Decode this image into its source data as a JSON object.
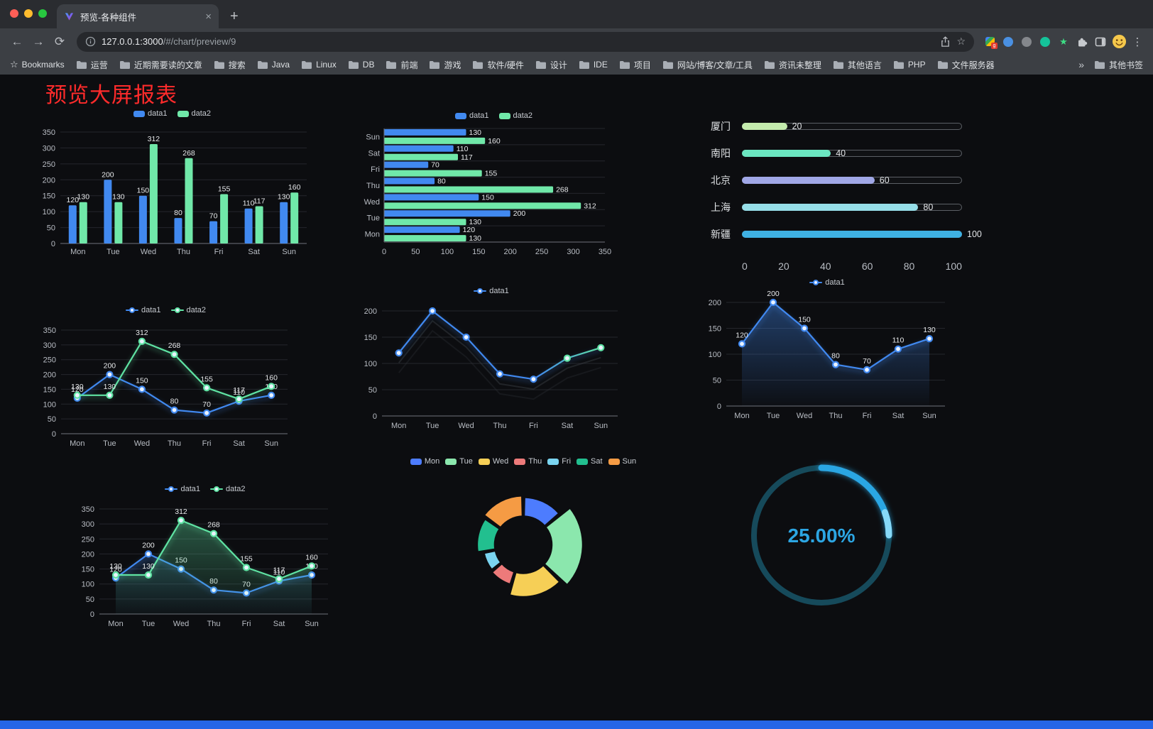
{
  "browser": {
    "tab": {
      "title": "预览-各种组件",
      "close_glyph": "×"
    },
    "new_tab_glyph": "+",
    "url_host": "127.0.0.1:3000",
    "url_path": "/#/chart/preview/9",
    "bookmarks_bar": {
      "first_item": "Bookmarks",
      "folders": [
        "运营",
        "近期需要读的文章",
        "搜索",
        "Java",
        "Linux",
        "DB",
        "前端",
        "游戏",
        "软件/硬件",
        "设计",
        "IDE",
        "项目",
        "网站/博客/文章/工具",
        "资讯未整理",
        "其他语言",
        "PHP",
        "文件服务器"
      ],
      "overflow_glyph": "»",
      "other_bookmarks": "其他书签"
    }
  },
  "page": {
    "title": "预览大屏报表",
    "accent_red": "#ff2b2b",
    "background": "#0c0d10",
    "footer_color": "#2565e6"
  },
  "chart_data": [
    {
      "type": "bar",
      "categories": [
        "Mon",
        "Tue",
        "Wed",
        "Thu",
        "Fri",
        "Sat",
        "Sun"
      ],
      "series": [
        {
          "name": "data1",
          "color": "#4189f0",
          "values": [
            120,
            200,
            150,
            80,
            70,
            110,
            130
          ]
        },
        {
          "name": "data2",
          "color": "#70e8a9",
          "values": [
            130,
            130,
            312,
            268,
            155,
            117,
            160
          ]
        }
      ],
      "ylim": [
        0,
        350
      ],
      "yticks": [
        0,
        50,
        100,
        150,
        200,
        250,
        300,
        350
      ]
    },
    {
      "type": "hbar",
      "categories": [
        "Mon",
        "Tue",
        "Wed",
        "Thu",
        "Fri",
        "Sat",
        "Sun"
      ],
      "series": [
        {
          "name": "data1",
          "color": "#4189f0",
          "values": [
            120,
            200,
            150,
            80,
            70,
            110,
            130
          ]
        },
        {
          "name": "data2",
          "color": "#70e8a9",
          "values": [
            130,
            130,
            312,
            268,
            155,
            117,
            160
          ]
        }
      ],
      "xlim": [
        0,
        350
      ],
      "xticks": [
        0,
        50,
        100,
        150,
        200,
        250,
        300,
        350
      ]
    },
    {
      "type": "progress",
      "max": 100,
      "items": [
        {
          "label": "厦门",
          "value": 20,
          "color": "#c4ebad"
        },
        {
          "label": "南阳",
          "value": 40,
          "color": "#6be6c1"
        },
        {
          "label": "北京",
          "value": 60,
          "color": "#a0a7e6"
        },
        {
          "label": "上海",
          "value": 80,
          "color": "#96dee8"
        },
        {
          "label": "新疆",
          "value": 100,
          "color": "#3fb1e3"
        }
      ],
      "xticks": [
        0,
        20,
        40,
        60,
        80,
        100
      ]
    },
    {
      "type": "line",
      "categories": [
        "Mon",
        "Tue",
        "Wed",
        "Thu",
        "Fri",
        "Sat",
        "Sun"
      ],
      "series": [
        {
          "name": "data1",
          "color": "#4189f0",
          "values": [
            120,
            200,
            150,
            80,
            70,
            110,
            130
          ],
          "labels": true
        },
        {
          "name": "data2",
          "color": "#5fe3a3",
          "values": [
            130,
            130,
            312,
            268,
            155,
            117,
            160
          ],
          "labels": true
        }
      ],
      "ylim": [
        0,
        350
      ],
      "yticks": [
        0,
        50,
        100,
        150,
        200,
        250,
        300,
        350
      ]
    },
    {
      "type": "line",
      "categories": [
        "Mon",
        "Tue",
        "Wed",
        "Thu",
        "Fri",
        "Sat",
        "Sun"
      ],
      "series": [
        {
          "name": "data1",
          "color": "#4189f0",
          "gradient": [
            "#4189f0",
            "#5fe3a3"
          ],
          "values": [
            120,
            200,
            150,
            80,
            70,
            110,
            130
          ],
          "labels": false,
          "shadow": true
        }
      ],
      "ylim": [
        0,
        200
      ],
      "yticks": [
        0,
        50,
        100,
        150,
        200
      ]
    },
    {
      "type": "line",
      "categories": [
        "Mon",
        "Tue",
        "Wed",
        "Thu",
        "Fri",
        "Sat",
        "Sun"
      ],
      "series": [
        {
          "name": "data1",
          "color": "#4189f0",
          "area": true,
          "area_opacity": 0.4,
          "values": [
            120,
            200,
            150,
            80,
            70,
            110,
            130
          ],
          "labels": true
        }
      ],
      "ylim": [
        0,
        200
      ],
      "yticks": [
        0,
        50,
        100,
        150,
        200
      ]
    },
    {
      "type": "line",
      "categories": [
        "Mon",
        "Tue",
        "Wed",
        "Thu",
        "Fri",
        "Sat",
        "Sun"
      ],
      "series": [
        {
          "name": "data1",
          "color": "#4189f0",
          "area": true,
          "area_opacity": 0.15,
          "values": [
            120,
            200,
            150,
            80,
            70,
            110,
            130
          ],
          "labels": true
        },
        {
          "name": "data2",
          "color": "#5fe3a3",
          "area": true,
          "area_opacity": 0.35,
          "values": [
            130,
            130,
            312,
            268,
            155,
            117,
            160
          ],
          "labels": true
        }
      ],
      "ylim": [
        0,
        350
      ],
      "yticks": [
        0,
        50,
        100,
        150,
        200,
        250,
        300,
        350
      ]
    },
    {
      "type": "donut",
      "categories": [
        "Mon",
        "Tue",
        "Wed",
        "Thu",
        "Fri",
        "Sat",
        "Sun"
      ],
      "values": [
        120,
        200,
        150,
        80,
        70,
        110,
        130
      ],
      "colors": [
        "#4d7cfe",
        "#8be7ad",
        "#f6cf56",
        "#ed7a7a",
        "#7ad4f0",
        "#22bf8f",
        "#f59b44"
      ]
    },
    {
      "type": "gauge",
      "value": 25,
      "label": "25.00%",
      "color": "#2ca6e3",
      "highlight": "#86d9f8",
      "track": "#164a5b"
    }
  ]
}
